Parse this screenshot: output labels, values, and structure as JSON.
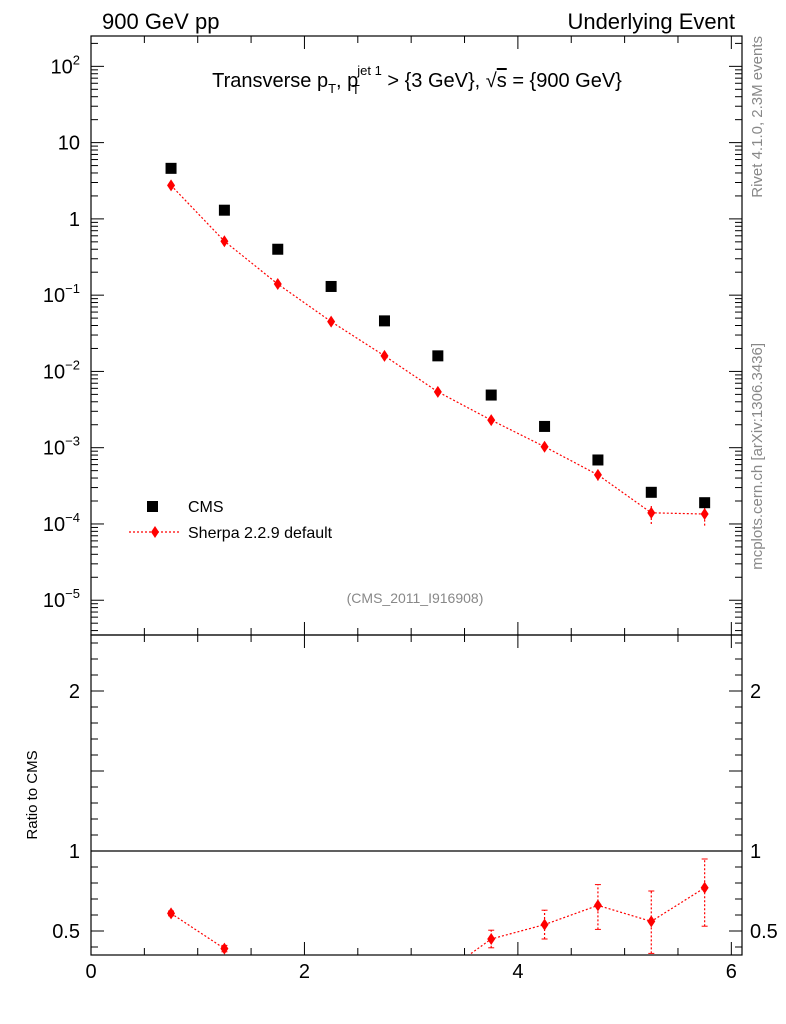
{
  "header": {
    "left": "900 GeV pp",
    "right": "Underlying Event"
  },
  "title": {
    "a": "Transverse p",
    "a_sub": "T",
    "b": ", p",
    "b_sup": "jet 1",
    "b_sub": "T",
    "c": " > {3 GeV}, ",
    "sqrt": "√",
    "s": "s",
    "d": " = {900 GeV}"
  },
  "side": {
    "rivet": "Rivet 4.1.0,  2.3M events",
    "mcplots": "mcplots.cern.ch [arXiv:1306.3436]"
  },
  "analysis_id": "(CMS_2011_I916908)",
  "legend": {
    "cms": "CMS",
    "sherpa": "Sherpa 2.2.9 default"
  },
  "colors": {
    "data": "#000000",
    "mc": "#ff0000"
  },
  "chart_data": [
    {
      "type": "scatter",
      "panel": "main",
      "yscale": "log",
      "xlim": [
        0,
        6.1
      ],
      "ylim": [
        3.5e-06,
        250
      ],
      "yticks": [
        {
          "value": 1e-05,
          "mant": "10",
          "exp": "−5"
        },
        {
          "value": 0.0001,
          "mant": "10",
          "exp": "−4"
        },
        {
          "value": 0.001,
          "mant": "10",
          "exp": "−3"
        },
        {
          "value": 0.01,
          "mant": "10",
          "exp": "−2"
        },
        {
          "value": 0.1,
          "mant": "10",
          "exp": "−1"
        },
        {
          "value": 1,
          "mant": "1",
          "exp": ""
        },
        {
          "value": 10,
          "mant": "10",
          "exp": ""
        },
        {
          "value": 100,
          "mant": "10",
          "exp": "2"
        }
      ],
      "series": [
        {
          "name": "CMS",
          "marker": "square",
          "x": [
            0.75,
            1.25,
            1.75,
            2.25,
            2.75,
            3.25,
            3.75,
            4.25,
            4.75,
            5.25,
            5.75
          ],
          "y": [
            4.6,
            1.3,
            0.4,
            0.13,
            0.046,
            0.016,
            0.0049,
            0.0019,
            0.00069,
            0.00026,
            0.00019
          ]
        },
        {
          "name": "Sherpa 2.2.9 default",
          "marker": "diamond",
          "x": [
            0.75,
            1.25,
            1.75,
            2.25,
            2.75,
            3.25,
            3.75,
            4.25,
            4.75,
            5.25,
            5.75
          ],
          "y": [
            2.75,
            0.51,
            0.14,
            0.045,
            0.016,
            0.0054,
            0.0023,
            0.00103,
            0.00044,
            0.00014,
            0.000135
          ],
          "err_lo": [
            0.1,
            0.02,
            0.006,
            0.0025,
            0.001,
            0.0004,
            0.00018,
            0.0001,
            7e-05,
            4e-05,
            4e-05
          ],
          "err_hi": [
            0.1,
            0.02,
            0.006,
            0.0025,
            0.001,
            0.0004,
            0.00018,
            0.0001,
            7e-05,
            4e-05,
            4e-05
          ]
        }
      ]
    },
    {
      "type": "line",
      "panel": "ratio",
      "ylabel": "Ratio to CMS",
      "xlim": [
        0,
        6.1
      ],
      "ylim": [
        0.35,
        2.35
      ],
      "xticks": [
        0,
        2,
        4,
        6
      ],
      "yticks": [
        0.5,
        1,
        2
      ],
      "reference": 1,
      "series": [
        {
          "name": "Sherpa 2.2.9 default",
          "x": [
            0.75,
            1.25,
            3.75,
            4.25,
            4.75,
            5.25,
            5.75
          ],
          "y": [
            0.61,
            0.39,
            0.45,
            0.54,
            0.66,
            0.56,
            0.77
          ],
          "err_lo": [
            0.015,
            0.02,
            0.055,
            0.09,
            0.15,
            0.2,
            0.24
          ],
          "err_hi": [
            0.015,
            0.02,
            0.055,
            0.09,
            0.13,
            0.19,
            0.18
          ]
        }
      ]
    }
  ]
}
